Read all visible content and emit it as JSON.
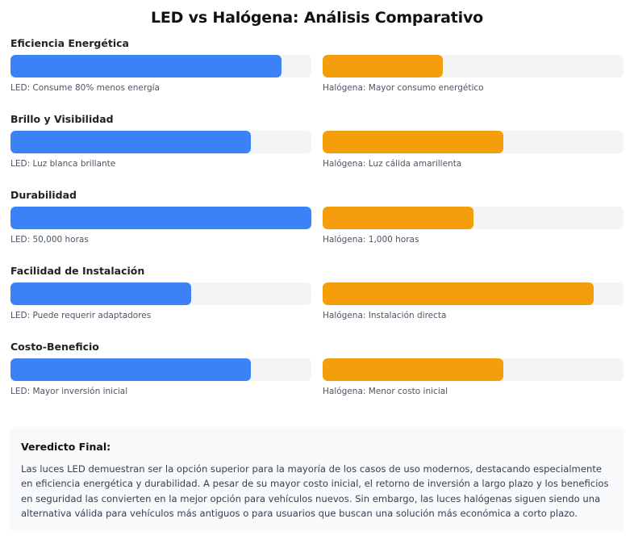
{
  "chart_data": {
    "type": "bar",
    "title": "LED vs Halógena: Análisis Comparativo",
    "colors": {
      "led": "#3b82f6",
      "halogena": "#f59e0b",
      "track": "#f3f4f6"
    },
    "categories": [
      {
        "name": "Eficiencia Energética",
        "led": {
          "value": 90,
          "label": "LED: Consume 80% menos energía"
        },
        "halogena": {
          "value": 40,
          "label": "Halógena: Mayor consumo energético"
        }
      },
      {
        "name": "Brillo y Visibilidad",
        "led": {
          "value": 80,
          "label": "LED: Luz blanca brillante"
        },
        "halogena": {
          "value": 60,
          "label": "Halógena: Luz cálida amarillenta"
        }
      },
      {
        "name": "Durabilidad",
        "led": {
          "value": 100,
          "label": "LED: 50,000 horas"
        },
        "halogena": {
          "value": 50,
          "label": "Halógena: 1,000 horas"
        }
      },
      {
        "name": "Facilidad de Instalación",
        "led": {
          "value": 60,
          "label": "LED: Puede requerir adaptadores"
        },
        "halogena": {
          "value": 90,
          "label": "Halógena: Instalación directa"
        }
      },
      {
        "name": "Costo-Beneficio",
        "led": {
          "value": 80,
          "label": "LED: Mayor inversión inicial"
        },
        "halogena": {
          "value": 60,
          "label": "Halógena: Menor costo inicial"
        }
      }
    ],
    "xlim": [
      0,
      100
    ]
  },
  "verdict": {
    "title": "Veredicto Final:",
    "text": "Las luces LED demuestran ser la opción superior para la mayoría de los casos de uso modernos, destacando especialmente en eficiencia energética y durabilidad. A pesar de su mayor costo inicial, el retorno de inversión a largo plazo y los beneficios en seguridad las convierten en la mejor opción para vehículos nuevos. Sin embargo, las luces halógenas siguen siendo una alternativa válida para vehículos más antiguos o para usuarios que buscan una solución más económica a corto plazo."
  }
}
